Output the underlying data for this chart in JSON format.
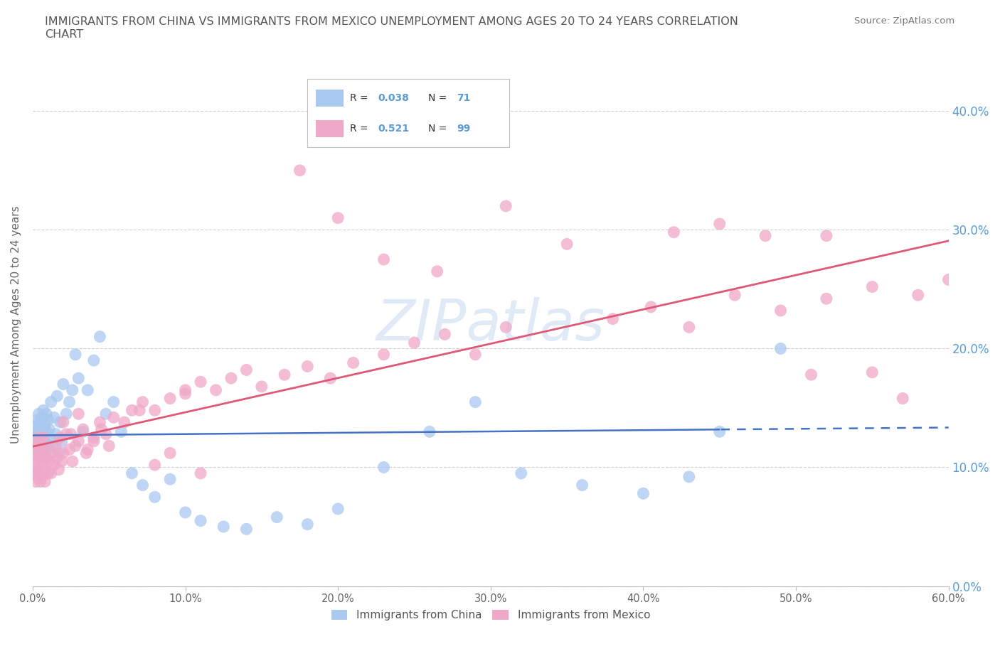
{
  "title": "IMMIGRANTS FROM CHINA VS IMMIGRANTS FROM MEXICO UNEMPLOYMENT AMONG AGES 20 TO 24 YEARS CORRELATION\nCHART",
  "source": "Source: ZipAtlas.com",
  "ylabel": "Unemployment Among Ages 20 to 24 years",
  "xlim": [
    0.0,
    0.6
  ],
  "ylim": [
    0.0,
    0.44
  ],
  "yticks": [
    0.0,
    0.1,
    0.2,
    0.3,
    0.4
  ],
  "xticks": [
    0.0,
    0.1,
    0.2,
    0.3,
    0.4,
    0.5,
    0.6
  ],
  "china_color": "#a8c8f0",
  "mexico_color": "#f0a8c8",
  "china_line_color": "#4472c4",
  "mexico_line_color": "#e05878",
  "china_R": 0.038,
  "china_N": 71,
  "mexico_R": 0.521,
  "mexico_N": 99,
  "watermark": "ZIPatlas",
  "background_color": "#ffffff",
  "grid_color": "#d0d0d0",
  "title_color": "#555555"
}
